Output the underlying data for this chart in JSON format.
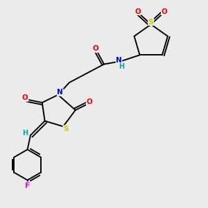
{
  "bg_color": "#ebebeb",
  "fig_size": [
    3.0,
    3.0
  ],
  "dpi": 100,
  "atom_colors": {
    "O": "#ff0000",
    "N": "#0000ff",
    "S": "#cccc00",
    "F": "#ff00ff",
    "H": "#00aaaa",
    "C": "#000000"
  },
  "bond_color": "#000000",
  "bond_width": 1.4
}
